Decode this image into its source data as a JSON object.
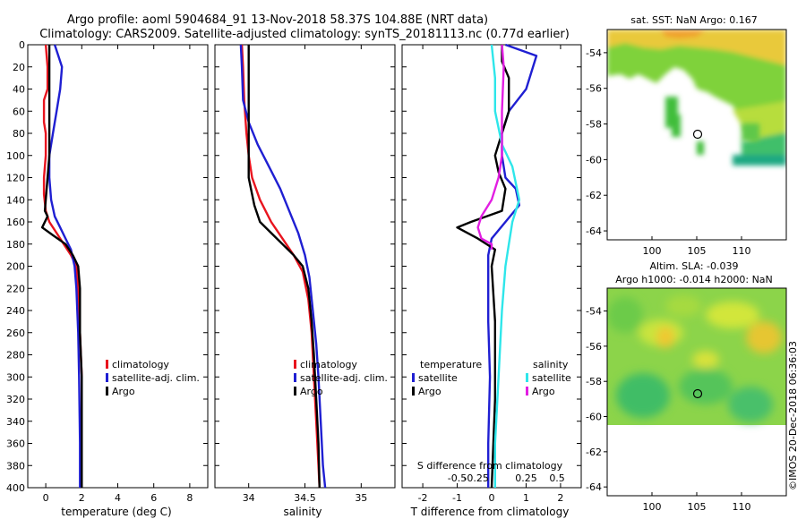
{
  "title_line1": "Argo profile: aoml 5904684_91 13-Nov-2018 58.37S 104.88E (NRT data)",
  "title_line2": "Climatology: CARS2009. Satellite-adjusted climatology: synTS_20181113.nc (0.77d earlier)",
  "colors": {
    "climatology": "#e8141e",
    "satellite": "#1f1fd2",
    "argo": "#000000",
    "sat_salinity": "#2ee6ea",
    "argo_salinity": "#e21ee2"
  },
  "chart_data": [
    {
      "type": "line",
      "name": "temperature",
      "xlabel": "temperature (deg C)",
      "ylabel": "",
      "xlim": [
        -1,
        9
      ],
      "ylim": [
        400,
        0
      ],
      "xticks": [
        0,
        2,
        4,
        6,
        8
      ],
      "xtick_labels": [
        "0",
        "2",
        "4",
        "6",
        "8"
      ],
      "yticks": [
        0,
        20,
        40,
        60,
        80,
        100,
        120,
        140,
        160,
        180,
        200,
        220,
        240,
        260,
        280,
        300,
        320,
        340,
        360,
        380,
        400
      ],
      "ytick_labels": [
        "0",
        "20",
        "40",
        "60",
        "80",
        "100",
        "120",
        "140",
        "160",
        "180",
        "200",
        "220",
        "240",
        "260",
        "280",
        "300",
        "320",
        "340",
        "360",
        "380",
        "400"
      ],
      "legend": [
        "climatology",
        "satellite-adj. clim.",
        "Argo"
      ],
      "series": [
        {
          "name": "climatology",
          "color": "#e8141e",
          "x": [
            0.0,
            0.1,
            0.1,
            -0.1,
            -0.1,
            0.0,
            0.0,
            -0.1,
            -0.1,
            0.0,
            0.2,
            0.6,
            1.0,
            1.4,
            1.7,
            1.8,
            1.9,
            2.0,
            2.0,
            2.0
          ],
          "y": [
            0,
            20,
            40,
            50,
            70,
            80,
            100,
            120,
            135,
            150,
            160,
            170,
            180,
            190,
            200,
            220,
            260,
            300,
            360,
            400
          ]
        },
        {
          "name": "satellite-adj. clim.",
          "color": "#1f1fd2",
          "x": [
            0.5,
            0.9,
            0.8,
            0.6,
            0.4,
            0.2,
            0.2,
            0.3,
            0.5,
            0.8,
            1.1,
            1.4,
            1.6,
            1.7,
            1.8,
            1.85,
            1.9,
            1.9
          ],
          "y": [
            0,
            20,
            40,
            60,
            80,
            100,
            120,
            140,
            155,
            165,
            175,
            185,
            200,
            220,
            260,
            300,
            360,
            400
          ]
        },
        {
          "name": "Argo",
          "color": "#000000",
          "x": [
            0.2,
            0.2,
            0.2,
            0.2,
            0.2,
            0.2,
            0.1,
            0.0,
            -0.05,
            0.1,
            -0.2,
            0.4,
            1.1,
            1.5,
            1.8,
            1.9,
            1.9,
            2.0,
            2.0,
            2.0,
            2.0
          ],
          "y": [
            0,
            20,
            40,
            60,
            80,
            100,
            120,
            140,
            150,
            155,
            165,
            172,
            180,
            190,
            200,
            220,
            260,
            300,
            340,
            380,
            400
          ]
        }
      ]
    },
    {
      "type": "line",
      "name": "salinity",
      "xlabel": "salinity",
      "ylabel": "",
      "xlim": [
        33.7,
        35.3
      ],
      "ylim": [
        400,
        0
      ],
      "xticks": [
        34,
        34.5,
        35
      ],
      "xtick_labels": [
        "34",
        "34.5",
        "35"
      ],
      "legend": [
        "climatology",
        "satellite-adj. clim.",
        "Argo"
      ],
      "series": [
        {
          "name": "climatology",
          "color": "#e8141e",
          "x": [
            33.94,
            33.95,
            33.96,
            33.98,
            34.0,
            34.03,
            34.1,
            34.2,
            34.3,
            34.4,
            34.48,
            34.53,
            34.56,
            34.58,
            34.6,
            34.62,
            34.63
          ],
          "y": [
            0,
            20,
            50,
            80,
            100,
            120,
            140,
            160,
            175,
            190,
            205,
            230,
            260,
            300,
            340,
            380,
            400
          ]
        },
        {
          "name": "satellite-adj. clim.",
          "color": "#1f1fd2",
          "x": [
            33.93,
            33.94,
            33.95,
            34.0,
            34.08,
            34.18,
            34.28,
            34.36,
            34.44,
            34.5,
            34.54,
            34.57,
            34.6,
            34.62,
            34.64,
            34.66,
            34.68
          ],
          "y": [
            0,
            20,
            50,
            70,
            90,
            110,
            130,
            150,
            170,
            190,
            210,
            240,
            270,
            300,
            340,
            380,
            400
          ]
        },
        {
          "name": "Argo",
          "color": "#000000",
          "x": [
            34.0,
            34.0,
            34.0,
            34.0,
            34.0,
            34.0,
            34.0,
            34.02,
            34.05,
            34.1,
            34.2,
            34.3,
            34.4,
            34.48,
            34.53,
            34.56,
            34.58,
            34.6,
            34.62,
            34.63
          ],
          "y": [
            0,
            20,
            40,
            60,
            80,
            100,
            120,
            130,
            145,
            160,
            170,
            180,
            190,
            200,
            220,
            250,
            280,
            320,
            360,
            400
          ]
        }
      ]
    },
    {
      "type": "line",
      "name": "difference",
      "xlabel": "T difference from climatology",
      "xlabel_top": "S difference from climatology",
      "xlim": [
        -2.6,
        2.6
      ],
      "ylim": [
        400,
        0
      ],
      "xticks": [
        -2,
        -1,
        0,
        1,
        2
      ],
      "xtick_labels": [
        "-2",
        "-1",
        "0",
        "1",
        "2"
      ],
      "s_ticks": [
        -0.5,
        -0.25,
        0.25,
        0.5
      ],
      "s_tick_labels": [
        "-0.5",
        "-0.25",
        "0.25",
        "0.5"
      ],
      "legend_left_title": "temperature",
      "legend_right_title": "salinity",
      "legend": [
        "satellite",
        "Argo",
        "satellite",
        "Argo"
      ],
      "series": [
        {
          "name": "temperature satellite",
          "color": "#1f1fd2",
          "x": [
            0.4,
            1.3,
            1.0,
            0.5,
            0.3,
            0.3,
            0.4,
            0.7,
            0.8,
            0.4,
            0.0,
            -0.1,
            -0.1,
            -0.1,
            -0.05,
            -0.1,
            -0.1
          ],
          "y": [
            0,
            10,
            40,
            60,
            80,
            100,
            120,
            130,
            145,
            160,
            175,
            190,
            210,
            250,
            300,
            360,
            400
          ]
        },
        {
          "name": "temperature Argo",
          "color": "#000000",
          "x": [
            0.3,
            0.3,
            0.5,
            0.5,
            0.3,
            0.1,
            0.2,
            0.4,
            0.3,
            -0.6,
            -1.0,
            -0.4,
            0.1,
            0.0,
            0.1,
            0.1,
            0.0
          ],
          "y": [
            0,
            15,
            30,
            60,
            80,
            100,
            115,
            130,
            150,
            160,
            165,
            175,
            185,
            200,
            250,
            320,
            400
          ]
        },
        {
          "name": "salinity satellite",
          "color": "#2ee6ea",
          "x": [
            0.0,
            0.1,
            0.1,
            0.3,
            0.6,
            0.8,
            0.6,
            0.5,
            0.4,
            0.3,
            0.2,
            0.1,
            0.1
          ],
          "y": [
            0,
            30,
            60,
            90,
            110,
            140,
            160,
            180,
            200,
            240,
            300,
            360,
            400
          ]
        },
        {
          "name": "salinity Argo",
          "color": "#e21ee2",
          "x": [
            0.3,
            0.35,
            0.3,
            0.3,
            0.2,
            0.0,
            -0.3,
            -0.4,
            -0.3,
            0.0,
            0.0
          ],
          "y": [
            0,
            20,
            60,
            100,
            120,
            140,
            155,
            165,
            175,
            180,
            185
          ]
        }
      ]
    },
    {
      "type": "heatmap",
      "name": "sst_map",
      "title": "sat. SST: NaN Argo: 0.167",
      "xticks": [
        100,
        105,
        110
      ],
      "xtick_labels": [
        "100",
        "105",
        "110"
      ],
      "yticks": [
        -54,
        -56,
        -58,
        -60,
        -62,
        -64
      ],
      "ytick_labels": [
        "-54",
        "-56",
        "-58",
        "-60",
        "-62",
        "-64"
      ],
      "xlim": [
        95,
        115
      ],
      "ylim": [
        -64.5,
        -52.7
      ],
      "argo_position": [
        104.88,
        -58.37
      ]
    },
    {
      "type": "heatmap",
      "name": "sla_map",
      "title_line1": "Altim. SLA: -0.039",
      "title_line2": "Argo h1000: -0.014 h2000: NaN",
      "xticks": [
        100,
        105,
        110
      ],
      "xtick_labels": [
        "100",
        "105",
        "110"
      ],
      "yticks": [
        -54,
        -56,
        -58,
        -60,
        -62,
        -64
      ],
      "ytick_labels": [
        "-54",
        "-56",
        "-58",
        "-60",
        "-62",
        "-64"
      ],
      "xlim": [
        95,
        115
      ],
      "ylim": [
        -64.5,
        -52.7
      ],
      "argo_position": [
        104.88,
        -58.37
      ]
    }
  ],
  "credit": "©IMOS 20-Dec-2018 06:36:03"
}
